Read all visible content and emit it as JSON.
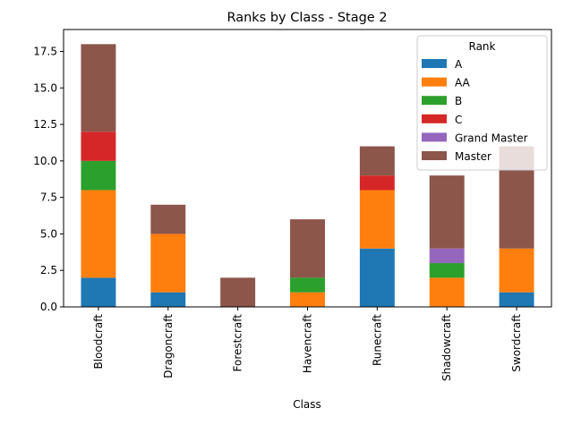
{
  "chart_data": {
    "type": "bar",
    "stacked": true,
    "title": "Ranks by Class - Stage 2",
    "xlabel": "Class",
    "ylabel": "",
    "categories": [
      "Bloodcraft",
      "Dragoncraft",
      "Forestcraft",
      "Havencraft",
      "Runecraft",
      "Shadowcraft",
      "Swordcraft"
    ],
    "ylim": [
      0,
      19
    ],
    "yticks": [
      0.0,
      2.5,
      5.0,
      7.5,
      10.0,
      12.5,
      15.0,
      17.5
    ],
    "ytick_labels": [
      "0.0",
      "2.5",
      "5.0",
      "7.5",
      "10.0",
      "12.5",
      "15.0",
      "17.5"
    ],
    "grid": false,
    "legend": {
      "title": "Rank",
      "placement": "top-right"
    },
    "series": [
      {
        "name": "A",
        "color": "#1f77b4",
        "values": [
          2,
          1,
          0,
          0,
          4,
          0,
          1
        ]
      },
      {
        "name": "AA",
        "color": "#ff7f0e",
        "values": [
          6,
          4,
          0,
          1,
          4,
          2,
          3
        ]
      },
      {
        "name": "B",
        "color": "#2ca02c",
        "values": [
          2,
          0,
          0,
          1,
          0,
          1,
          0
        ]
      },
      {
        "name": "C",
        "color": "#d62728",
        "values": [
          2,
          0,
          0,
          0,
          1,
          0,
          0
        ]
      },
      {
        "name": "Grand Master",
        "color": "#9467bd",
        "values": [
          0,
          0,
          0,
          0,
          0,
          1,
          0
        ]
      },
      {
        "name": "Master",
        "color": "#8c564b",
        "values": [
          6,
          2,
          2,
          4,
          2,
          5,
          7
        ]
      }
    ]
  }
}
